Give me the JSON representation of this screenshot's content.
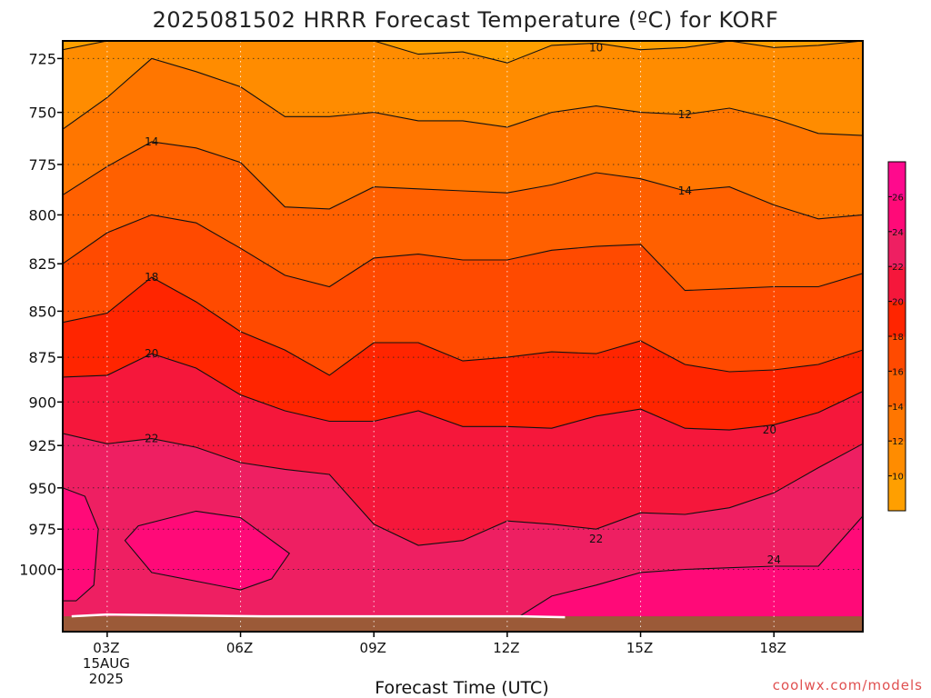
{
  "chart_data": {
    "type": "heatmap",
    "title": "2025081502 HRRR Forecast Temperature (ºC) for KORF",
    "xlabel": "Forecast Time (UTC)",
    "ylabel": "",
    "credit": "coolwx.com/models",
    "y_axis": {
      "scale": "log",
      "inverted": true,
      "ylim": [
        717,
        1040
      ],
      "ticks": [
        "725",
        "750",
        "775",
        "800",
        "825",
        "850",
        "875",
        "900",
        "925",
        "950",
        "975",
        "1000"
      ]
    },
    "x_axis": {
      "xlim": [
        2,
        20
      ],
      "ticks": [
        {
          "value": 3,
          "lines": [
            "03Z",
            "15AUG",
            "2025"
          ]
        },
        {
          "value": 6,
          "lines": [
            "06Z"
          ]
        },
        {
          "value": 9,
          "lines": [
            "09Z"
          ]
        },
        {
          "value": 12,
          "lines": [
            "12Z"
          ]
        },
        {
          "value": 15,
          "lines": [
            "15Z"
          ]
        },
        {
          "value": 18,
          "lines": [
            "18Z"
          ]
        }
      ]
    },
    "grid": true,
    "colorbar": {
      "position": "right",
      "levels": [
        8,
        10,
        12,
        14,
        16,
        18,
        20,
        22,
        24,
        26,
        28
      ],
      "tick_labels": [
        "10",
        "12",
        "14",
        "16",
        "18",
        "20",
        "22",
        "24",
        "26"
      ],
      "colors": [
        "#ff9f00",
        "#ff8c00",
        "#ff7600",
        "#ff6000",
        "#ff4a00",
        "#ff2500",
        "#f5173b",
        "#ee1f62",
        "#ff0a78",
        "#fe0a8d"
      ]
    },
    "terrain_color": "#9b5a38",
    "contour_values": [
      10,
      12,
      14,
      16,
      18,
      20,
      22,
      24
    ],
    "contour_labels": [
      {
        "text": "10",
        "x": 14.0,
        "y": 720
      },
      {
        "text": "12",
        "x": 16.0,
        "y": 751
      },
      {
        "text": "14",
        "x": 4.0,
        "y": 764
      },
      {
        "text": "14",
        "x": 16.0,
        "y": 788
      },
      {
        "text": "18",
        "x": 4.0,
        "y": 832
      },
      {
        "text": "20",
        "x": 4.0,
        "y": 873
      },
      {
        "text": "20",
        "x": 17.9,
        "y": 916
      },
      {
        "text": "22",
        "x": 4.0,
        "y": 921
      },
      {
        "text": "22",
        "x": 14.0,
        "y": 981
      },
      {
        "text": "24",
        "x": 18.0,
        "y": 994
      }
    ],
    "isotherms": [
      {
        "value": 10,
        "x": [
          2,
          3,
          4,
          5,
          6,
          7,
          8,
          9,
          10,
          11,
          12,
          13,
          14,
          15,
          16,
          17,
          18,
          19,
          20
        ],
        "y": [
          721,
          717,
          716,
          716,
          717,
          717,
          717,
          717,
          723,
          722,
          727,
          719,
          718,
          721,
          720,
          717,
          720,
          719,
          717
        ]
      },
      {
        "value": 12,
        "x": [
          2,
          3,
          4,
          5,
          6,
          7,
          8,
          9,
          10,
          11,
          12,
          13,
          14,
          15,
          16,
          17,
          18,
          19,
          20
        ],
        "y": [
          758,
          743,
          725,
          731,
          738,
          752,
          752,
          750,
          754,
          754,
          757,
          750,
          747,
          750,
          751,
          748,
          753,
          760,
          761
        ]
      },
      {
        "value": 14,
        "x": [
          2,
          3,
          4,
          5,
          6,
          7,
          8,
          9,
          10,
          11,
          12,
          13,
          14,
          15,
          16,
          17,
          18,
          19,
          20
        ],
        "y": [
          790,
          776,
          764,
          767,
          774,
          796,
          797,
          786,
          787,
          788,
          789,
          785,
          779,
          782,
          788,
          786,
          795,
          802,
          800
        ]
      },
      {
        "value": 16,
        "x": [
          2,
          3,
          4,
          5,
          6,
          7,
          8,
          9,
          10,
          11,
          12,
          13,
          14,
          15,
          16,
          17,
          18,
          19,
          20
        ],
        "y": [
          825,
          809,
          800,
          804,
          817,
          831,
          837,
          822,
          820,
          823,
          823,
          818,
          816,
          815,
          839,
          838,
          837,
          837,
          830
        ]
      },
      {
        "value": 18,
        "x": [
          2,
          3,
          4,
          5,
          6,
          7,
          8,
          9,
          10,
          11,
          12,
          13,
          14,
          15,
          16,
          17,
          18,
          19,
          20
        ],
        "y": [
          856,
          851,
          832,
          845,
          861,
          871,
          885,
          867,
          867,
          877,
          875,
          872,
          873,
          866,
          879,
          883,
          882,
          879,
          871
        ]
      },
      {
        "value": 20,
        "x": [
          2,
          3,
          4,
          5,
          6,
          7,
          8,
          9,
          10,
          11,
          12,
          13,
          14,
          15,
          16,
          17,
          18,
          19,
          20
        ],
        "y": [
          886,
          885,
          873,
          881,
          896,
          905,
          911,
          911,
          905,
          914,
          914,
          915,
          908,
          904,
          915,
          916,
          913,
          906,
          894
        ]
      },
      {
        "value": 22,
        "x": [
          2,
          3,
          4,
          5,
          6,
          7,
          8,
          9,
          10,
          11,
          12,
          13,
          14,
          15,
          16,
          17,
          18,
          19,
          20
        ],
        "y": [
          918,
          924,
          921,
          926,
          935,
          939,
          942,
          972,
          985,
          982,
          970,
          972,
          975,
          965,
          966,
          962,
          953,
          938,
          924
        ]
      },
      {
        "value": 24,
        "x": [
          2,
          3,
          4,
          5,
          6,
          7,
          8,
          9,
          10,
          11,
          12,
          13,
          14,
          15,
          16,
          17,
          18,
          19,
          20
        ],
        "y": [
          1037,
          1037,
          1037,
          1037,
          1037,
          1037,
          1037,
          1037,
          1037,
          1037,
          1035,
          1017,
          1010,
          1002,
          1000,
          999,
          998,
          998,
          967
        ]
      }
    ],
    "warm_pockets": [
      {
        "value": 24,
        "x": [
          2.7,
          2.3,
          2.0,
          2.0,
          2.5,
          2.8,
          2.7
        ],
        "y": [
          1010,
          1020,
          1020,
          950,
          955,
          975,
          1010
        ]
      },
      {
        "value": 24,
        "x": [
          3.4,
          3.7,
          5.0,
          6.0,
          7.1,
          6.7,
          6.0,
          4.0,
          3.4
        ],
        "y": [
          982,
          973,
          964,
          968,
          990,
          1006,
          1013,
          1002,
          982
        ]
      }
    ]
  }
}
